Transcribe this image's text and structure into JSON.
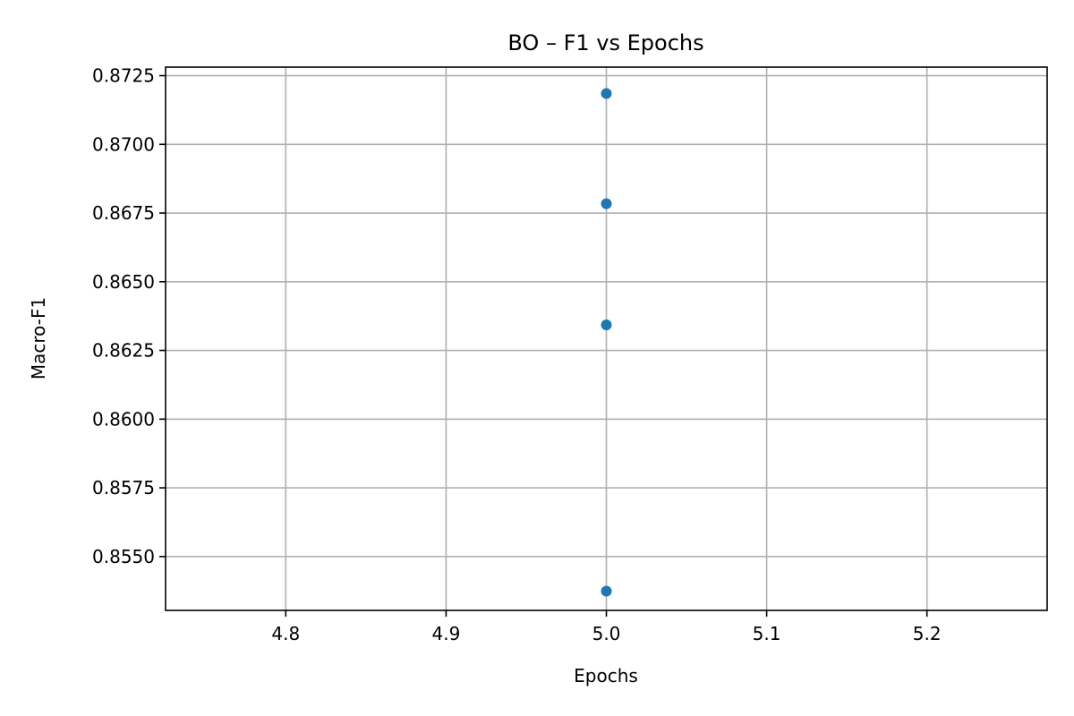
{
  "chart_data": {
    "type": "scatter",
    "title": "BO – F1 vs Epochs",
    "xlabel": "Epochs",
    "ylabel": "Macro-F1",
    "xlim": [
      4.725,
      5.275
    ],
    "ylim": [
      0.85304,
      0.87281
    ],
    "xticks": [
      4.8,
      4.9,
      5.0,
      5.1,
      5.2
    ],
    "xtick_labels": [
      "4.8",
      "4.9",
      "5.0",
      "5.1",
      "5.2"
    ],
    "yticks": [
      0.855,
      0.8575,
      0.86,
      0.8625,
      0.865,
      0.8675,
      0.87,
      0.8725
    ],
    "ytick_labels": [
      "0.8550",
      "0.8575",
      "0.8600",
      "0.8625",
      "0.8650",
      "0.8675",
      "0.8700",
      "0.8725"
    ],
    "grid": true,
    "point_color": "#1f77b4",
    "series": [
      {
        "x": [
          5.0,
          5.0,
          5.0,
          5.0
        ],
        "y": [
          0.87185,
          0.86784,
          0.86343,
          0.85374
        ]
      }
    ]
  }
}
